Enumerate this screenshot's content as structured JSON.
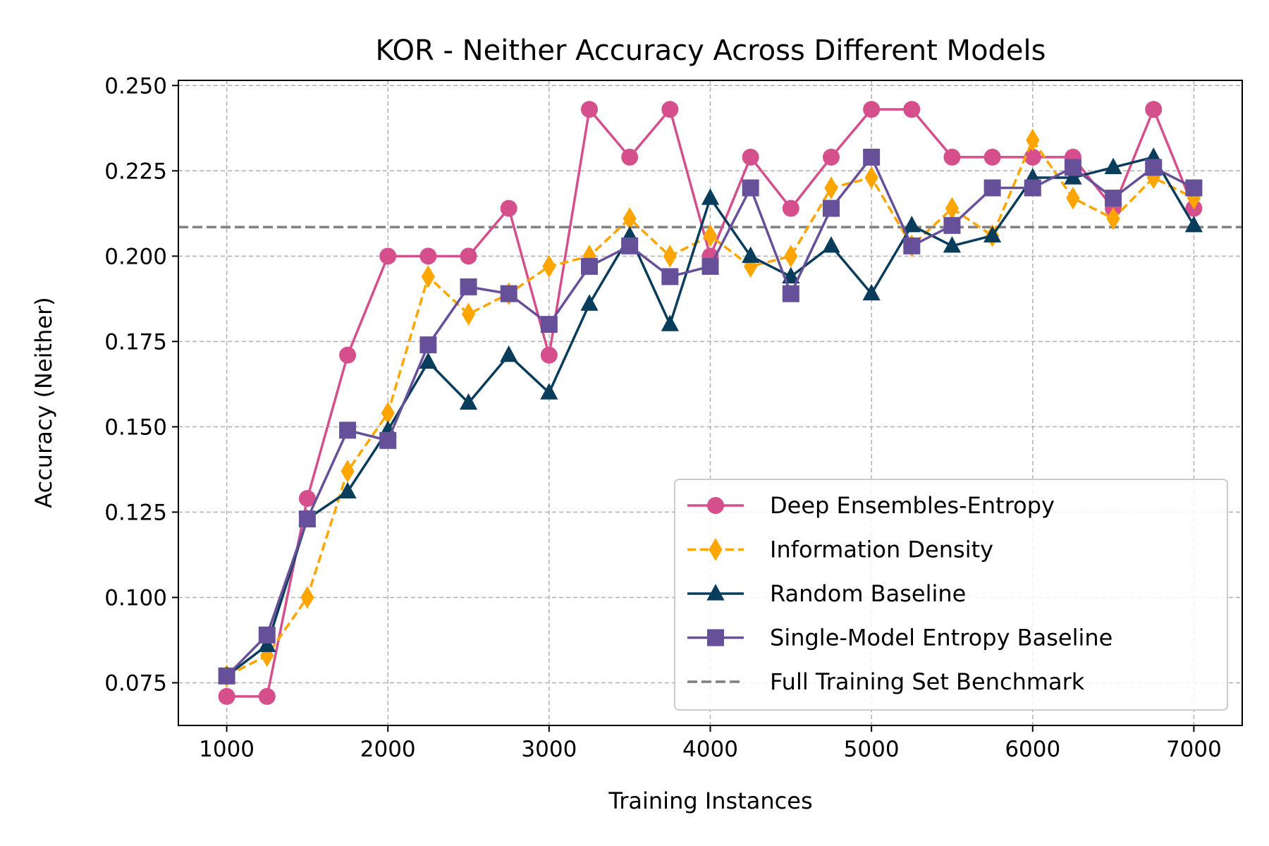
{
  "chart_data": {
    "type": "line",
    "title": "KOR - Neither Accuracy Across Different Models",
    "xlabel": "Training Instances",
    "ylabel": "Accuracy (Neither)",
    "xlim": [
      700,
      7300
    ],
    "ylim": [
      0.0625,
      0.2515
    ],
    "xticks": [
      1000,
      2000,
      3000,
      4000,
      5000,
      6000,
      7000
    ],
    "xtick_labels": [
      "1000",
      "2000",
      "3000",
      "4000",
      "5000",
      "6000",
      "7000"
    ],
    "yticks": [
      0.075,
      0.1,
      0.125,
      0.15,
      0.175,
      0.2,
      0.225,
      0.25
    ],
    "ytick_labels": [
      "0.075",
      "0.100",
      "0.125",
      "0.150",
      "0.175",
      "0.200",
      "0.225",
      "0.250"
    ],
    "grid": true,
    "legend_position": "bottom-right",
    "x": [
      1000,
      1250,
      1500,
      1750,
      2000,
      2250,
      2500,
      2750,
      3000,
      3250,
      3500,
      3750,
      4000,
      4250,
      4500,
      4750,
      5000,
      5250,
      5500,
      5750,
      6000,
      6250,
      6500,
      6750,
      7000
    ],
    "series": [
      {
        "name": "Deep Ensembles-Entropy",
        "color": "#d44f8c",
        "marker": "circle",
        "dash": "solid",
        "values": [
          0.071,
          0.071,
          0.129,
          0.171,
          0.2,
          0.2,
          0.2,
          0.214,
          0.171,
          0.243,
          0.229,
          0.243,
          0.2,
          0.229,
          0.214,
          0.229,
          0.243,
          0.243,
          0.229,
          0.229,
          0.229,
          0.229,
          0.214,
          0.243,
          0.214
        ]
      },
      {
        "name": "Information Density",
        "color": "#ffa500",
        "marker": "diamond",
        "dash": "dashed",
        "values": [
          0.077,
          0.083,
          0.1,
          0.137,
          0.154,
          0.194,
          0.183,
          0.189,
          0.197,
          0.2,
          0.211,
          0.2,
          0.206,
          0.197,
          0.2,
          0.22,
          0.223,
          0.203,
          0.214,
          0.206,
          0.234,
          0.217,
          0.211,
          0.223,
          0.217
        ]
      },
      {
        "name": "Random Baseline",
        "color": "#0a3d5c",
        "marker": "triangle",
        "dash": "solid",
        "values": [
          0.077,
          0.086,
          0.123,
          0.131,
          0.149,
          0.169,
          0.157,
          0.171,
          0.16,
          0.186,
          0.206,
          0.18,
          0.217,
          0.2,
          0.194,
          0.203,
          0.189,
          0.209,
          0.203,
          0.206,
          0.223,
          0.223,
          0.226,
          0.229,
          0.209
        ]
      },
      {
        "name": "Single-Model Entropy Baseline",
        "color": "#67509a",
        "marker": "square",
        "dash": "solid",
        "values": [
          0.077,
          0.089,
          0.123,
          0.149,
          0.146,
          0.174,
          0.191,
          0.189,
          0.18,
          0.197,
          0.203,
          0.194,
          0.197,
          0.22,
          0.189,
          0.214,
          0.229,
          0.203,
          0.209,
          0.22,
          0.22,
          0.226,
          0.217,
          0.226,
          0.22
        ]
      }
    ],
    "reference_line": {
      "name": "Full Training Set Benchmark",
      "color": "#808080",
      "dash": "dashed",
      "y": 0.2085
    }
  }
}
